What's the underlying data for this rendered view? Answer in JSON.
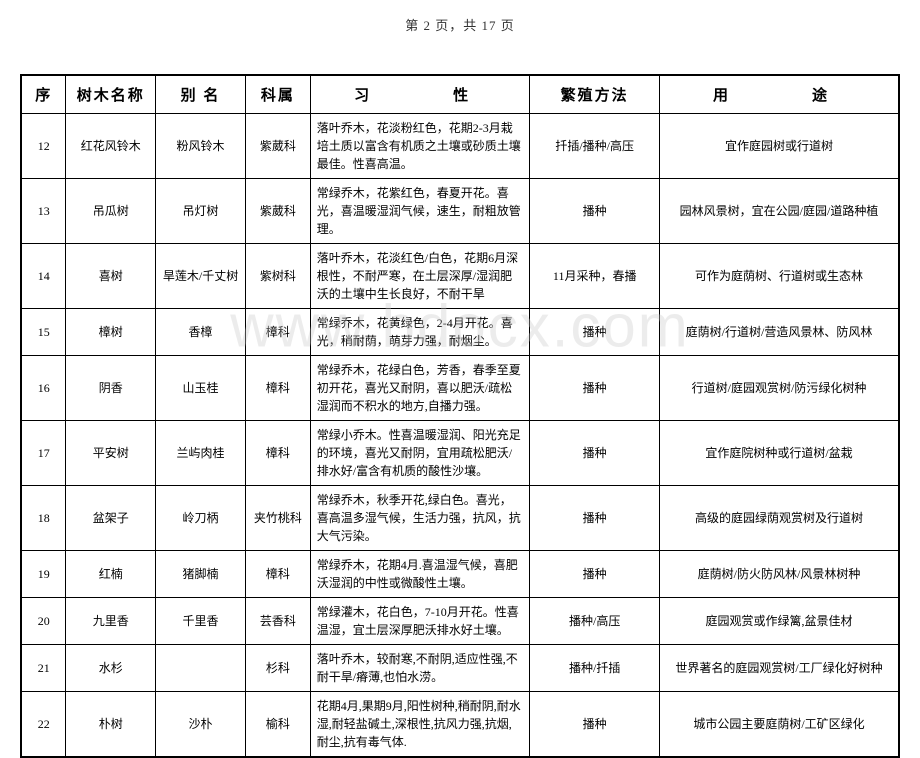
{
  "pageHeader": "第 2 页，共 17 页",
  "watermark": "www.bdocx.com",
  "headers": {
    "seq": "序",
    "name": "树木名称",
    "alias": "别 名",
    "family": "科属",
    "habit": "习　　性",
    "method": "繁殖方法",
    "use": "用　　途"
  },
  "rows": [
    {
      "seq": "12",
      "name": "红花风铃木",
      "alias": "粉风铃木",
      "family": "紫葳科",
      "habit": "落叶乔木，花淡粉红色，花期2-3月栽培土质以富含有机质之土壤或砂质土壤最佳。性喜高温。",
      "method": "扦插/播种/高压",
      "use": "宜作庭园树或行道树"
    },
    {
      "seq": "13",
      "name": "吊瓜树",
      "alias": "吊灯树",
      "family": "紫葳科",
      "habit": "常绿乔木，花紫红色，春夏开花。喜光，喜温暖湿润气候，速生，耐粗放管理。",
      "method": "播种",
      "use": "园林风景树，宜在公园/庭园/道路种植"
    },
    {
      "seq": "14",
      "name": "喜树",
      "alias": "旱莲木/千丈树",
      "family": "紫树科",
      "habit": "落叶乔木，花淡红色/白色，花期6月深根性，不耐严寒，在土层深厚/湿润肥沃的土壤中生长良好，不耐干旱",
      "method": "11月采种，春播",
      "use": "可作为庭荫树、行道树或生态林"
    },
    {
      "seq": "15",
      "name": "樟树",
      "alias": "香樟",
      "family": "樟科",
      "habit": "常绿乔木，花黄绿色，2-4月开花。喜光，稍耐荫，萌芽力强，耐烟尘。",
      "method": "播种",
      "use": "庭荫树/行道树/营造风景林、防风林"
    },
    {
      "seq": "16",
      "name": "阴香",
      "alias": "山玉桂",
      "family": "樟科",
      "habit": "常绿乔木，花绿白色，芳香，春季至夏初开花，喜光又耐阴，喜以肥沃/疏松湿润而不积水的地方,自播力强。",
      "method": "播种",
      "use": "行道树/庭园观赏树/防污绿化树种"
    },
    {
      "seq": "17",
      "name": "平安树",
      "alias": "兰屿肉桂",
      "family": "樟科",
      "habit": "常绿小乔木。性喜温暖湿润、阳光充足的环境，喜光又耐阴，宜用疏松肥沃/排水好/富含有机质的酸性沙壤。",
      "method": "播种",
      "use": "宜作庭院树种或行道树/盆栽"
    },
    {
      "seq": "18",
      "name": "盆架子",
      "alias": "岭刀柄",
      "family": "夹竹桃科",
      "habit": "常绿乔木，秋季开花,绿白色。喜光，喜高温多湿气候，生活力强，抗风，抗大气污染。",
      "method": "播种",
      "use": "高级的庭园绿荫观赏树及行道树"
    },
    {
      "seq": "19",
      "name": "红楠",
      "alias": "猪脚楠",
      "family": "樟科",
      "habit": "常绿乔木，花期4月.喜温湿气候，喜肥沃湿润的中性或微酸性土壤。",
      "method": "播种",
      "use": "庭荫树/防火防风林/风景林树种"
    },
    {
      "seq": "20",
      "name": "九里香",
      "alias": "千里香",
      "family": "芸香科",
      "habit": "常绿灌木，花白色，7-10月开花。性喜温湿，宜土层深厚肥沃排水好土壤。",
      "method": "播种/高压",
      "use": "庭园观赏或作绿篱,盆景佳材"
    },
    {
      "seq": "21",
      "name": "水杉",
      "alias": "",
      "family": "杉科",
      "habit": "落叶乔木，较耐寒,不耐阴,适应性强,不耐干旱/瘠薄,也怕水涝。",
      "method": "播种/扦插",
      "use": "世界著名的庭园观赏树/工厂绿化好树种"
    },
    {
      "seq": "22",
      "name": "朴树",
      "alias": "沙朴",
      "family": "榆科",
      "habit": "花期4月,果期9月,阳性树种,稍耐阴,耐水湿,耐轻盐碱土,深根性,抗风力强,抗烟,耐尘,抗有毒气体.",
      "method": "播种",
      "use": "城市公园主要庭荫树/工矿区绿化"
    }
  ]
}
